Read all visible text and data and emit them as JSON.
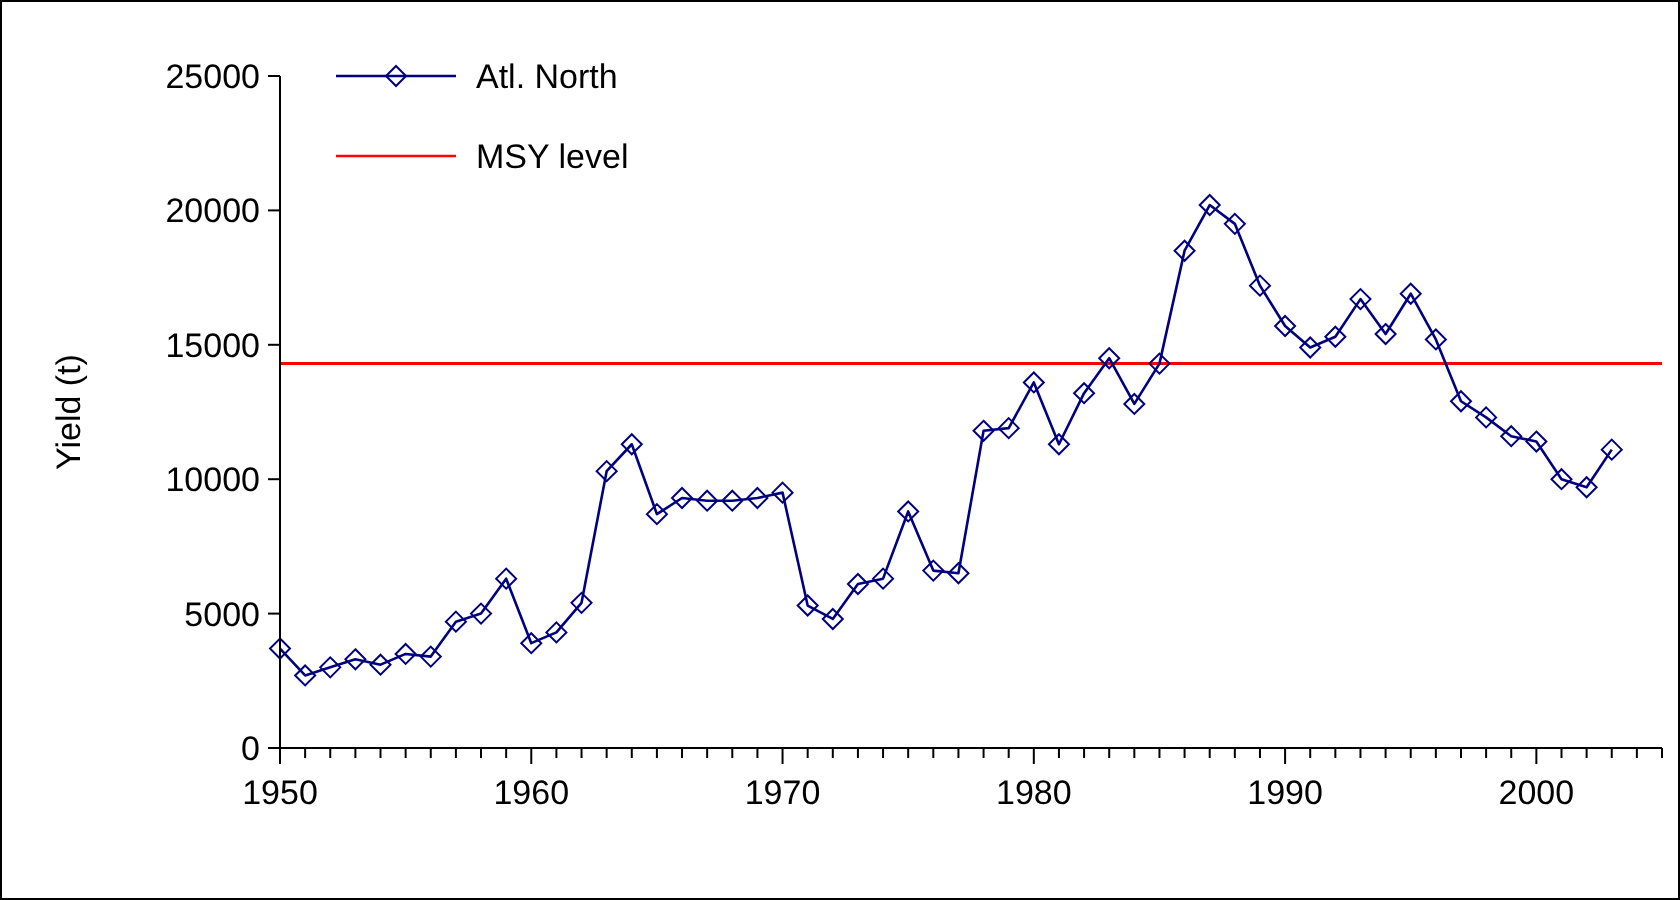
{
  "chart_data": {
    "type": "line",
    "ylabel": "Yield (t)",
    "legend": "top left",
    "marker": "diamond",
    "line_style": "solid",
    "grid": false,
    "xlim": [
      1950,
      2005
    ],
    "xticks": [
      1950,
      {
        "value": 1951,
        "label": null
      },
      {
        "value": 1952,
        "label": null
      },
      {
        "value": 1953,
        "label": null
      },
      {
        "value": 1954,
        "label": null
      },
      {
        "value": 1955,
        "label": null
      },
      {
        "value": 1956,
        "label": null
      },
      {
        "value": 1957,
        "label": null
      },
      {
        "value": 1958,
        "label": null
      },
      {
        "value": 1959,
        "label": null
      },
      1960,
      {
        "value": 1961,
        "label": null
      },
      {
        "value": 1962,
        "label": null
      },
      {
        "value": 1963,
        "label": null
      },
      {
        "value": 1964,
        "label": null
      },
      {
        "value": 1965,
        "label": null
      },
      {
        "value": 1966,
        "label": null
      },
      {
        "value": 1967,
        "label": null
      },
      {
        "value": 1968,
        "label": null
      },
      {
        "value": 1969,
        "label": null
      },
      1970,
      {
        "value": 1971,
        "label": null
      },
      {
        "value": 1972,
        "label": null
      },
      {
        "value": 1973,
        "label": null
      },
      {
        "value": 1974,
        "label": null
      },
      {
        "value": 1975,
        "label": null
      },
      {
        "value": 1976,
        "label": null
      },
      {
        "value": 1977,
        "label": null
      },
      {
        "value": 1978,
        "label": null
      },
      {
        "value": 1979,
        "label": null
      },
      1980,
      {
        "value": 1981,
        "label": null
      },
      {
        "value": 1982,
        "label": null
      },
      {
        "value": 1983,
        "label": null
      },
      {
        "value": 1984,
        "label": null
      },
      {
        "value": 1985,
        "label": null
      },
      {
        "value": 1986,
        "label": null
      },
      {
        "value": 1987,
        "label": null
      },
      {
        "value": 1988,
        "label": null
      },
      {
        "value": 1989,
        "label": null
      },
      1990,
      {
        "value": 1991,
        "label": null
      },
      {
        "value": 1992,
        "label": null
      },
      {
        "value": 1993,
        "label": null
      },
      {
        "value": 1994,
        "label": null
      },
      {
        "value": 1995,
        "label": null
      },
      {
        "value": 1996,
        "label": null
      },
      {
        "value": 1997,
        "label": null
      },
      {
        "value": 1998,
        "label": null
      },
      {
        "value": 1999,
        "label": null
      },
      2000,
      {
        "value": 2001,
        "label": null
      },
      {
        "value": 2002,
        "label": null
      },
      {
        "value": 2003,
        "label": null
      },
      {
        "value": 2004,
        "label": null
      },
      {
        "value": 2005,
        "label": null
      }
    ],
    "ylim": [
      0,
      25000
    ],
    "yticks": [
      0,
      5000,
      10000,
      15000,
      20000,
      25000
    ],
    "x": [
      1950,
      1951,
      1952,
      1953,
      1954,
      1955,
      1956,
      1957,
      1958,
      1959,
      1960,
      1961,
      1962,
      1963,
      1964,
      1965,
      1966,
      1967,
      1968,
      1969,
      1970,
      1971,
      1972,
      1973,
      1974,
      1975,
      1976,
      1977,
      1978,
      1979,
      1980,
      1981,
      1982,
      1983,
      1984,
      1985,
      1986,
      1987,
      1988,
      1989,
      1990,
      1991,
      1992,
      1993,
      1994,
      1995,
      1996,
      1997,
      1998,
      1999,
      2000,
      2001,
      2002,
      2003
    ],
    "series": [
      {
        "name": "Atl. North",
        "color": "#000080",
        "values": [
          3700,
          2700,
          3000,
          3300,
          3100,
          3500,
          3400,
          4700,
          5000,
          6300,
          3900,
          4300,
          5400,
          10300,
          11300,
          8700,
          9300,
          9200,
          9200,
          9300,
          9500,
          5300,
          4800,
          6100,
          6300,
          8800,
          6600,
          6500,
          11800,
          11900,
          13600,
          11300,
          13200,
          14500,
          12800,
          14300,
          18500,
          20200,
          19500,
          17200,
          15700,
          14900,
          15300,
          16700,
          15400,
          16900,
          15200,
          12900,
          12300,
          11600,
          11400,
          10000,
          9700,
          11100
        ]
      }
    ],
    "ref_lines": [
      {
        "axis": "y",
        "value": 14300,
        "label": "MSY level",
        "color": "#ff0000",
        "line_style": "solid"
      }
    ]
  }
}
